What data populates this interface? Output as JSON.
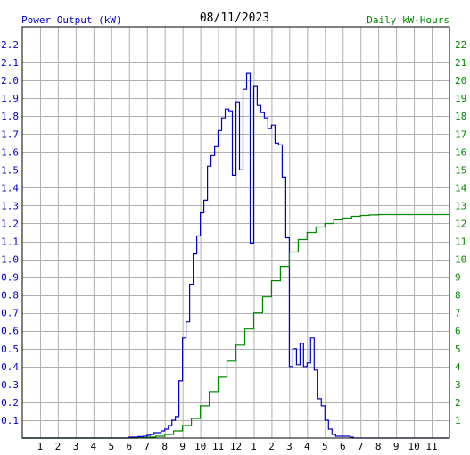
{
  "chart_data": {
    "type": "line",
    "title": "08/11/2023",
    "left_axis_label": "Power Output (kW)",
    "right_axis_label": "Daily kW-Hours",
    "x_tick_labels": [
      "1",
      "2",
      "3",
      "4",
      "5",
      "6",
      "7",
      "8",
      "9",
      "10",
      "11",
      "12",
      "1",
      "2",
      "3",
      "4",
      "5",
      "6",
      "7",
      "8",
      "9",
      "10",
      "11"
    ],
    "x_range": [
      0,
      24
    ],
    "left_ylim": [
      0,
      2.3
    ],
    "left_tick_labels": [
      "0.1",
      "0.2",
      "0.3",
      "0.4",
      "0.5",
      "0.6",
      "0.7",
      "0.8",
      "0.9",
      "1.0",
      "1.1",
      "1.2",
      "1.3",
      "1.4",
      "1.5",
      "1.6",
      "1.7",
      "1.8",
      "1.9",
      "2.0",
      "2.1",
      "2.2"
    ],
    "right_ylim": [
      0,
      23
    ],
    "right_tick_labels": [
      "1",
      "2",
      "3",
      "4",
      "5",
      "6",
      "7",
      "8",
      "9",
      "10",
      "11",
      "12",
      "13",
      "14",
      "15",
      "16",
      "17",
      "18",
      "19",
      "20",
      "21",
      "22"
    ],
    "grid": true,
    "colors": {
      "power": "#0000cc",
      "energy": "#008800",
      "grid": "#b0b0b0",
      "frame": "#000000",
      "title": "#000000"
    },
    "series": [
      {
        "axis": "left",
        "x": [
          0,
          5.9,
          6.0,
          6.5,
          6.8,
          7.0,
          7.2,
          7.4,
          7.6,
          7.8,
          8.0,
          8.2,
          8.4,
          8.6,
          8.8,
          9.0,
          9.2,
          9.4,
          9.6,
          9.8,
          10.0,
          10.2,
          10.4,
          10.6,
          10.8,
          11.0,
          11.2,
          11.4,
          11.6,
          11.8,
          12.0,
          12.2,
          12.4,
          12.6,
          12.8,
          13.0,
          13.2,
          13.4,
          13.6,
          13.8,
          14.0,
          14.2,
          14.4,
          14.6,
          14.8,
          15.0,
          15.2,
          15.4,
          15.6,
          15.8,
          16.0,
          16.2,
          16.4,
          16.6,
          16.8,
          17.0,
          17.2,
          17.4,
          17.6,
          17.8,
          18.0,
          18.2,
          18.4,
          18.6,
          18.8,
          19.0,
          19.2,
          19.4,
          19.6,
          20.0,
          20.5,
          21.0,
          24.0
        ],
        "values": [
          0,
          0,
          0.005,
          0.008,
          0.01,
          0.015,
          0.02,
          0.03,
          0.03,
          0.04,
          0.05,
          0.07,
          0.1,
          0.12,
          0.32,
          0.56,
          0.65,
          0.86,
          1.03,
          1.13,
          1.26,
          1.33,
          1.52,
          1.58,
          1.63,
          1.72,
          1.79,
          1.84,
          1.83,
          1.47,
          1.88,
          1.5,
          1.95,
          2.04,
          1.09,
          1.97,
          1.86,
          1.82,
          1.79,
          1.73,
          1.75,
          1.65,
          1.64,
          1.46,
          1.12,
          0.4,
          0.5,
          0.41,
          0.53,
          0.4,
          0.42,
          0.56,
          0.38,
          0.22,
          0.18,
          0.1,
          0.05,
          0.02,
          0.01,
          0.01,
          0.01,
          0.01,
          0.005,
          0,
          0,
          0,
          0,
          0,
          0,
          0,
          0,
          0,
          0
        ]
      },
      {
        "axis": "right",
        "x": [
          0,
          6.5,
          7.0,
          7.5,
          8.0,
          8.5,
          9.0,
          9.5,
          10.0,
          10.5,
          11.0,
          11.5,
          12.0,
          12.5,
          13.0,
          13.5,
          14.0,
          14.5,
          15.0,
          15.5,
          16.0,
          16.5,
          17.0,
          17.5,
          18.0,
          18.5,
          19.0,
          19.5,
          20.0,
          24.0
        ],
        "values": [
          0,
          0.02,
          0.05,
          0.1,
          0.2,
          0.4,
          0.7,
          1.1,
          1.8,
          2.6,
          3.4,
          4.3,
          5.2,
          6.1,
          7.0,
          7.9,
          8.8,
          9.6,
          10.4,
          11.1,
          11.5,
          11.8,
          12.0,
          12.2,
          12.3,
          12.4,
          12.45,
          12.48,
          12.5,
          12.5
        ]
      }
    ]
  }
}
